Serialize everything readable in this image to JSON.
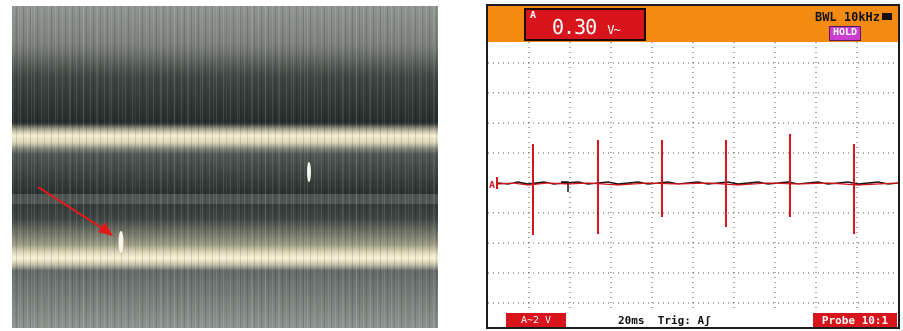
{
  "microscope_image": {
    "description_icon": "surface-photo",
    "annotation": "red-arrow-icon"
  },
  "oscilloscope": {
    "channel_label": "A",
    "reading_value": "0.30",
    "reading_unit": "V~",
    "bandwidth_limit": "BWL 10kHz",
    "battery_icon": "battery-icon",
    "hold_label": "HOLD",
    "trace_marker": "A",
    "channel_scale": "A~2 V",
    "timebase": "20ms",
    "trigger": "Trig: Aʃ",
    "probe": "Probe 10:1",
    "colors": {
      "header": "#f58a12",
      "trace": "#d8141c",
      "hold": "#c83fd0"
    }
  }
}
